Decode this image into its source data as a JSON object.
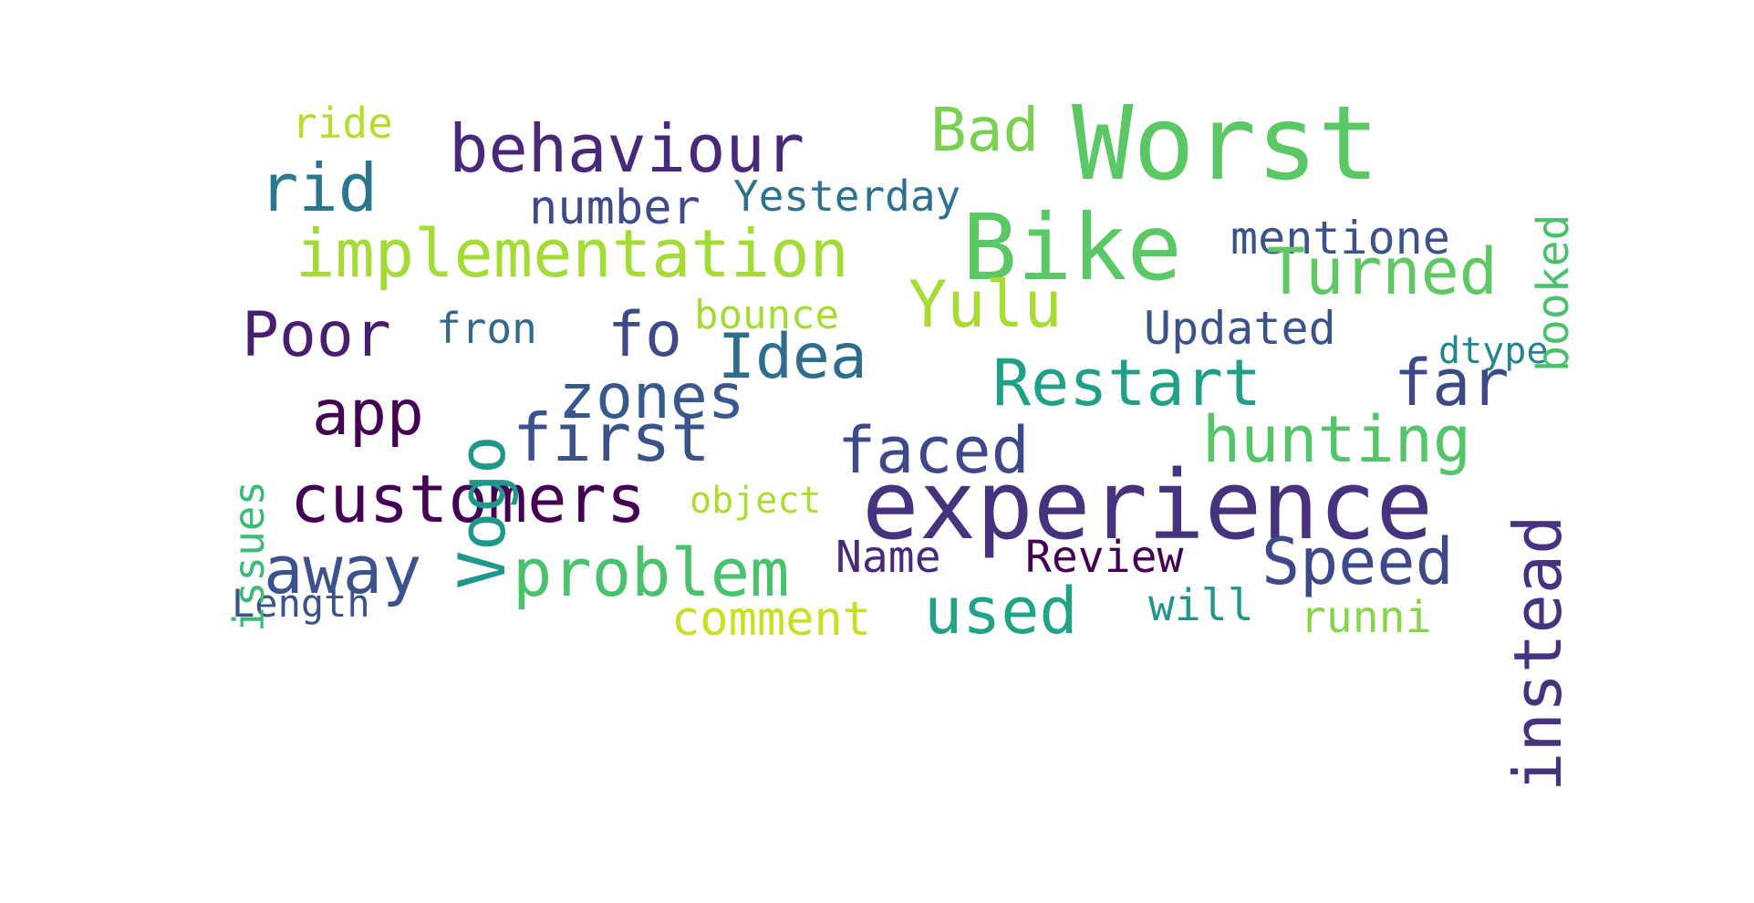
{
  "words": [
    {
      "text": "Worst",
      "color": "#5ac864"
    },
    {
      "text": "Bike",
      "color": "#5ac864"
    },
    {
      "text": "experience",
      "color": "#46327e"
    },
    {
      "text": "behaviour",
      "color": "#482878"
    },
    {
      "text": "implementation",
      "color": "#a5db36"
    },
    {
      "text": "Bad",
      "color": "#7ad151"
    },
    {
      "text": "ride",
      "color": "#b5de2b"
    },
    {
      "text": "rid",
      "color": "#2a788e"
    },
    {
      "text": "number",
      "color": "#3e4a89"
    },
    {
      "text": "Yesterday",
      "color": "#2c728e"
    },
    {
      "text": "mentione",
      "color": "#3b528b"
    },
    {
      "text": "booked",
      "color": "#4ac16d"
    },
    {
      "text": "Turned",
      "color": "#5ec962"
    },
    {
      "text": "Yulu",
      "color": "#a8db34"
    },
    {
      "text": "fron",
      "color": "#31688e"
    },
    {
      "text": "bounce",
      "color": "#a5db36"
    },
    {
      "text": "Updated",
      "color": "#3b528b"
    },
    {
      "text": "Poor",
      "color": "#481f70"
    },
    {
      "text": "fo",
      "color": "#3e4989"
    },
    {
      "text": "Idea",
      "color": "#2f6c8e"
    },
    {
      "text": "dtype",
      "color": "#25858e"
    },
    {
      "text": "Vogo",
      "color": "#1f988b"
    },
    {
      "text": "zones",
      "color": "#38598c"
    },
    {
      "text": "Restart",
      "color": "#1fa187"
    },
    {
      "text": "far",
      "color": "#3e4989"
    },
    {
      "text": "app",
      "color": "#440154"
    },
    {
      "text": "issues",
      "color": "#3bbb75"
    },
    {
      "text": "first",
      "color": "#3b528b"
    },
    {
      "text": "faced",
      "color": "#3e4989"
    },
    {
      "text": "hunting",
      "color": "#54c568"
    },
    {
      "text": "instead",
      "color": "#46327e"
    },
    {
      "text": "customers",
      "color": "#440154"
    },
    {
      "text": "object",
      "color": "#addc30"
    },
    {
      "text": "away",
      "color": "#3b528b"
    },
    {
      "text": "problem",
      "color": "#4ac16d"
    },
    {
      "text": "Name",
      "color": "#482878"
    },
    {
      "text": "Review",
      "color": "#440154"
    },
    {
      "text": "Speed",
      "color": "#3e4989"
    },
    {
      "text": "Length",
      "color": "#3b528b"
    },
    {
      "text": "comment",
      "color": "#c8e020"
    },
    {
      "text": "used",
      "color": "#20a386"
    },
    {
      "text": "will",
      "color": "#1f988b"
    },
    {
      "text": "runni",
      "color": "#86d549"
    }
  ]
}
